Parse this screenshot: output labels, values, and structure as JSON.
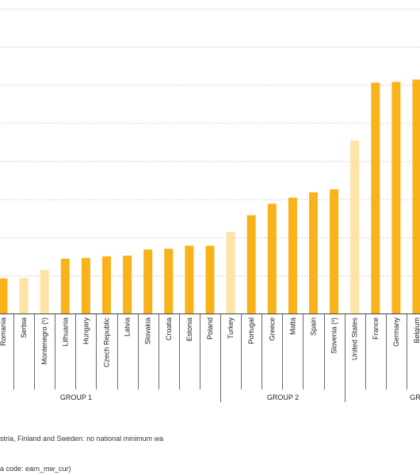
{
  "colors": {
    "bar": "#F9B21A",
    "bar_light": "#FDE3A6",
    "grid": "#bdbdbd",
    "axis": "#444444"
  },
  "chart_data": {
    "type": "bar",
    "ylim": [
      0,
      2000
    ],
    "grid": true,
    "categories": [
      "Romania",
      "Serbia",
      "Montenegro (¹)",
      "Lithuania",
      "Hungary",
      "Czech Republic",
      "Latvia",
      "Slovakia",
      "Croatia",
      "Estonia",
      "Poland",
      "Turkey",
      "Portugal",
      "Greece",
      "Malta",
      "Spain",
      "Slovenia (²)",
      "United States",
      "France",
      "Germany",
      "Belgium"
    ],
    "values": [
      230,
      233,
      285,
      360,
      365,
      375,
      380,
      420,
      425,
      445,
      445,
      535,
      645,
      720,
      760,
      795,
      815,
      1135,
      1515,
      1520,
      1535
    ],
    "highlight": [
      false,
      true,
      true,
      false,
      false,
      false,
      false,
      false,
      false,
      false,
      false,
      true,
      false,
      false,
      false,
      false,
      false,
      true,
      false,
      false,
      false
    ],
    "groups": [
      {
        "label": "GROUP 1"
      },
      {
        "label": "GROUP 2"
      },
      {
        "label": "GR"
      }
    ]
  },
  "notes": {
    "line1": "stria, Finland and Sweden: no national minimum wa",
    "line2": "a code: earn_mw_cur)"
  }
}
